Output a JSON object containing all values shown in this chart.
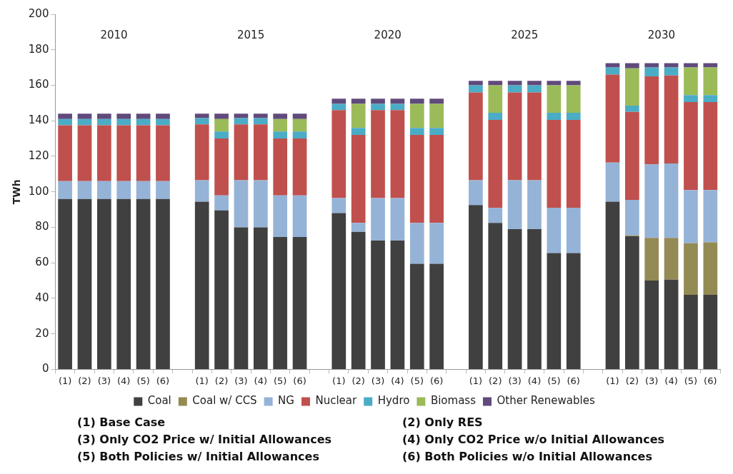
{
  "chart_data": {
    "type": "bar",
    "stacked": true,
    "ylabel": "TWh",
    "ylim": [
      0,
      200
    ],
    "yticks": [
      0,
      20,
      40,
      60,
      80,
      100,
      120,
      140,
      160,
      180,
      200
    ],
    "legend": "bottom",
    "categories": [
      "(1)",
      "(2)",
      "(3)",
      "(4)",
      "(5)",
      "(6)",
      null,
      "(1)",
      "(2)",
      "(3)",
      "(4)",
      "(5)",
      "(6)",
      null,
      "(1)",
      "(2)",
      "(3)",
      "(4)",
      "(5)",
      "(6)",
      null,
      "(1)",
      "(2)",
      "(3)",
      "(4)",
      "(5)",
      "(6)",
      null,
      "(1)",
      "(2)",
      "(3)",
      "(4)",
      "(5)",
      "(6)"
    ],
    "series": [
      {
        "name": "Coal",
        "color": "#404040",
        "values": [
          96,
          96,
          96,
          96,
          96,
          96,
          null,
          94.5,
          89.5,
          80,
          80,
          74.5,
          74.5,
          null,
          88,
          77.5,
          72.5,
          72.5,
          59.5,
          59.5,
          null,
          92.5,
          82.5,
          79,
          79,
          65.5,
          65.5,
          null,
          94.5,
          75,
          50,
          50.5,
          42,
          42
        ]
      },
      {
        "name": "Coal w/ CCS",
        "color": "#948a54",
        "values": [
          0,
          0,
          0,
          0,
          0,
          0,
          null,
          0,
          0,
          0,
          0,
          0,
          0,
          null,
          0,
          0,
          0,
          0,
          0,
          0,
          null,
          0,
          0,
          0,
          0,
          0,
          0,
          null,
          0,
          0.5,
          24,
          23.5,
          29,
          29.5
        ]
      },
      {
        "name": "NG",
        "color": "#95b3d7",
        "values": [
          10,
          10,
          10,
          10,
          10,
          10,
          null,
          12,
          8.5,
          26.5,
          26.5,
          23.5,
          23.5,
          null,
          8.5,
          5,
          24,
          24,
          23,
          23,
          null,
          14,
          8.5,
          27.5,
          27.5,
          25.5,
          25.5,
          null,
          22,
          20,
          41.5,
          42,
          30,
          29.5
        ]
      },
      {
        "name": "Nuclear",
        "color": "#c0504d",
        "values": [
          31.5,
          31.5,
          31.5,
          31.5,
          31.5,
          31.5,
          null,
          31.5,
          32,
          31.5,
          31.5,
          32,
          32,
          null,
          49.5,
          49.5,
          49.5,
          49.5,
          49.5,
          49.5,
          null,
          49.5,
          49.5,
          49.5,
          49.5,
          49.5,
          49.5,
          null,
          49.5,
          49.5,
          49.5,
          49.5,
          49.5,
          49.5
        ]
      },
      {
        "name": "Hydro",
        "color": "#4bacc6",
        "values": [
          3.5,
          3.5,
          3.5,
          3.5,
          3.5,
          3.5,
          null,
          3.5,
          4,
          3.5,
          3.5,
          4,
          4,
          null,
          3.5,
          4,
          3.5,
          3.5,
          4,
          4,
          null,
          4,
          4,
          4,
          4,
          4,
          4,
          null,
          4,
          3.5,
          5,
          4.5,
          4,
          4
        ]
      },
      {
        "name": "Biomass",
        "color": "#9bbb59",
        "values": [
          0,
          0,
          0,
          0,
          0,
          0,
          null,
          0,
          7,
          0,
          0,
          7,
          7,
          null,
          0,
          13.5,
          0,
          0,
          13.5,
          13.5,
          null,
          0,
          15.5,
          0,
          0,
          15.5,
          15.5,
          null,
          0,
          21,
          0,
          0,
          15.5,
          15.5
        ]
      },
      {
        "name": "Other Renewables",
        "color": "#604a7b",
        "values": [
          3,
          3,
          3,
          3,
          3,
          3,
          null,
          2.5,
          3,
          2.5,
          2.5,
          3,
          3,
          null,
          3,
          3,
          3,
          3,
          3,
          3,
          null,
          2.5,
          2.5,
          2.5,
          2.5,
          2.5,
          2.5,
          null,
          2.5,
          3,
          2.5,
          2.5,
          2.5,
          2.5
        ]
      }
    ],
    "annotations": [
      "2010",
      "2015",
      "2020",
      "2025",
      "2030",
      "(1) Base Case",
      "(2) Only RES",
      "(3) Only CO2 Price w/ Initial Allowances",
      "(4) Only CO2 Price w/o Initial Allowances",
      "(5) Both Policies w/ Initial Allowances",
      "(6) Both Policies w/o Initial Allowances"
    ]
  }
}
